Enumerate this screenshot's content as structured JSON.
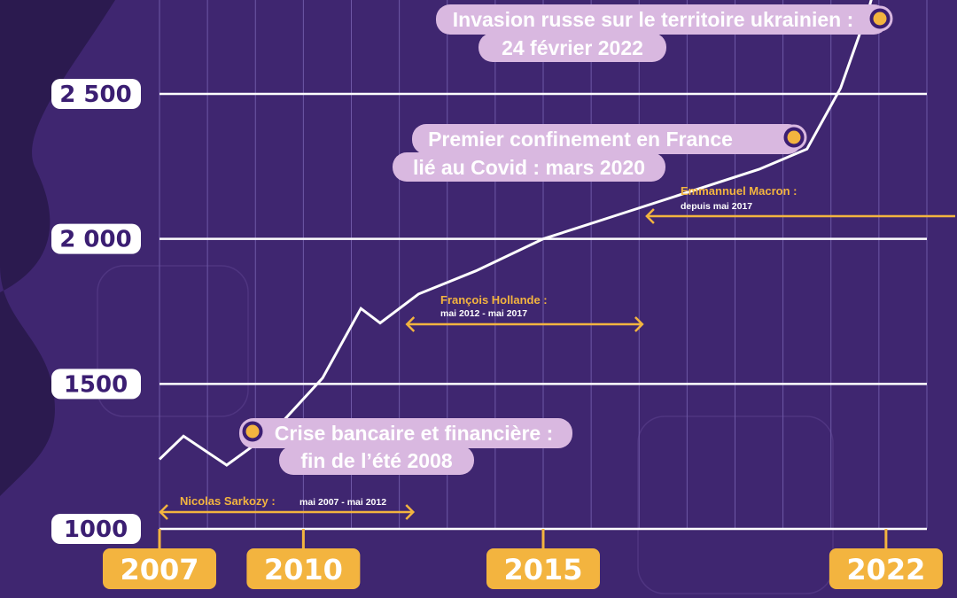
{
  "colors": {
    "background": "#3f2670",
    "background_dark": "#2b1a4f",
    "line": "#ffffff",
    "accent": "#f3b43f",
    "bubble": "#d9b8e0"
  },
  "chart_data": {
    "type": "line",
    "x": [
      2007,
      2007.5,
      2008.4,
      2009.4,
      2010.4,
      2011.2,
      2011.6,
      2012.4,
      2013.6,
      2015,
      2016.5,
      2018,
      2019.5,
      2020.5,
      2021.2,
      2021.8,
      2022.3
    ],
    "y": [
      1240,
      1320,
      1220,
      1340,
      1520,
      1760,
      1710,
      1810,
      1890,
      2000,
      2080,
      2160,
      2240,
      2310,
      2520,
      2800,
      3100
    ],
    "ylim": [
      1000,
      3100
    ],
    "xlim": [
      2007,
      2023
    ],
    "y_ticks": [
      {
        "value": 1000,
        "label": "1000"
      },
      {
        "value": 1500,
        "label": "1500"
      },
      {
        "value": 2000,
        "label": "2 000"
      },
      {
        "value": 2500,
        "label": "2 500"
      }
    ],
    "x_ticks": [
      {
        "value": 2007,
        "label": "2007"
      },
      {
        "value": 2010,
        "label": "2010"
      },
      {
        "value": 2015,
        "label": "2015"
      },
      {
        "value": 2022,
        "label": "2022"
      }
    ],
    "grid": true,
    "events": [
      {
        "year": 2022.0,
        "value": 3000,
        "lines": [
          "Invasion russe sur le territoire ukrainien :",
          "24 février 2022"
        ]
      },
      {
        "year": 2020.3,
        "value": 2350,
        "lines": [
          "Premier confinement en France",
          "lié au Covid : mars 2020"
        ]
      },
      {
        "year": 2008.9,
        "value": 1320,
        "lines": [
          "Crise bancaire et financière :",
          "fin de l’été 2008"
        ]
      }
    ],
    "presidents": [
      {
        "name": "Nicolas Sarkozy :",
        "period": "mai 2007 - mai 2012",
        "start": 2007.0,
        "end": 2012.4
      },
      {
        "name": "François Hollande :",
        "period": "mai 2012 - mai 2017",
        "start": 2012.4,
        "end": 2017.4
      },
      {
        "name": "Emmannuel Macron :",
        "period": "depuis mai 2017",
        "start": 2017.4,
        "end": null
      }
    ]
  }
}
